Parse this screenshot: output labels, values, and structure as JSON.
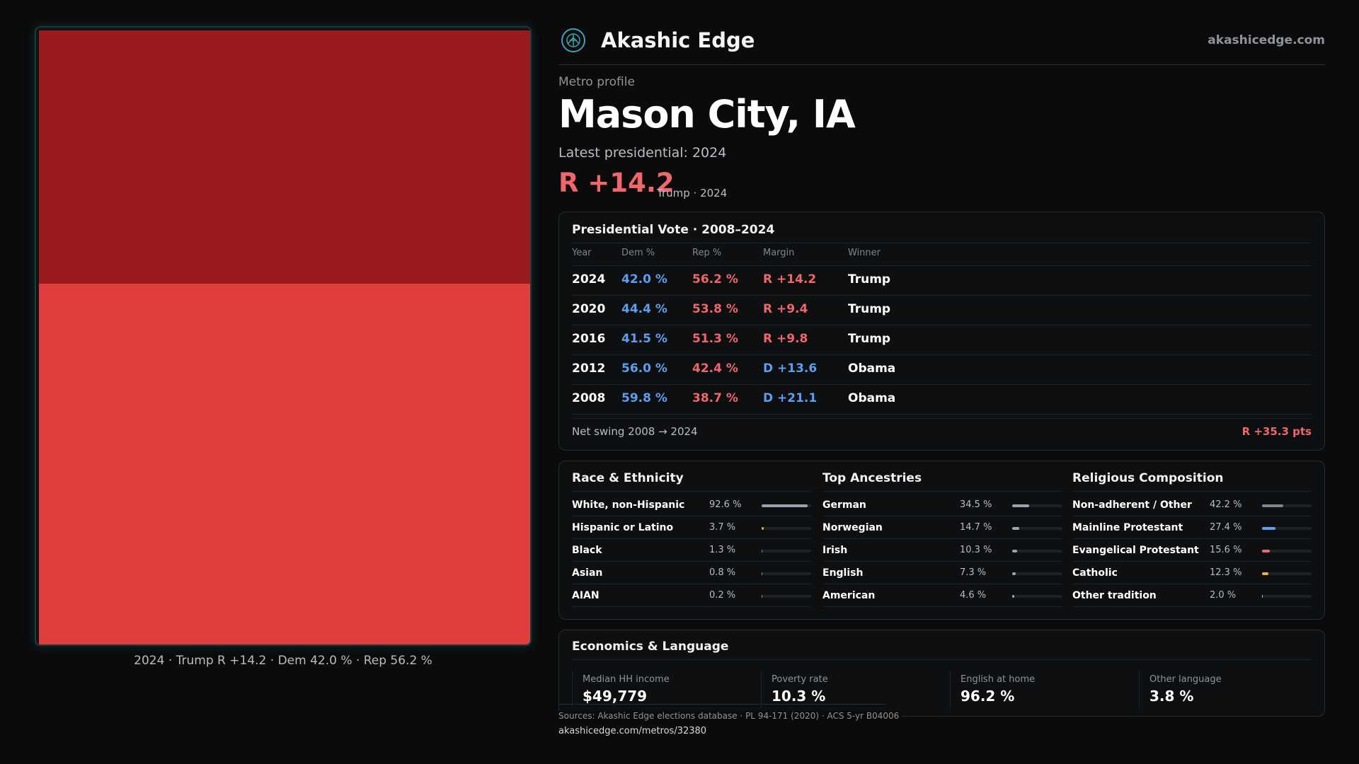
{
  "brand": {
    "name": "Akashic Edge",
    "url": "akashicedge.com",
    "logo_icon": "compass-figure-icon"
  },
  "profile": {
    "kicker": "Metro profile",
    "city": "Mason City, IA",
    "latest_label": "Latest presidential: 2024",
    "margin": "R +14.2",
    "margin_sub": "Trump · 2024"
  },
  "map": {
    "caption": "2024 · Trump R +14.2 · Dem 42.0 % · Rep 56.2 %",
    "colors": {
      "upper": "#9a1b1e",
      "lower": "#e03d3e"
    }
  },
  "vote_table": {
    "title": "Presidential Vote · 2008–2024",
    "headers": {
      "year": "Year",
      "dem": "Dem %",
      "rep": "Rep %",
      "margin": "Margin",
      "winner": "Winner"
    },
    "rows": [
      {
        "year": "2024",
        "dem": "42.0 %",
        "rep": "56.2 %",
        "margin": "R +14.2",
        "party": "R",
        "winner": "Trump"
      },
      {
        "year": "2020",
        "dem": "44.4 %",
        "rep": "53.8 %",
        "margin": "R +9.4",
        "party": "R",
        "winner": "Trump"
      },
      {
        "year": "2016",
        "dem": "41.5 %",
        "rep": "51.3 %",
        "margin": "R +9.8",
        "party": "R",
        "winner": "Trump"
      },
      {
        "year": "2012",
        "dem": "56.0 %",
        "rep": "42.4 %",
        "margin": "D +13.6",
        "party": "D",
        "winner": "Obama"
      },
      {
        "year": "2008",
        "dem": "59.8 %",
        "rep": "38.7 %",
        "margin": "D +21.1",
        "party": "D",
        "winner": "Obama"
      }
    ],
    "swing_label": "Net swing 2008 → 2024",
    "swing_value": "R +35.3 pts"
  },
  "demographics": [
    {
      "title": "Race & Ethnicity",
      "rows": [
        {
          "label": "White, non-Hispanic",
          "value": "92.6 %",
          "pct": 92.6,
          "color": "#9aa3b0"
        },
        {
          "label": "Hispanic or Latino",
          "value": "3.7 %",
          "pct": 3.7,
          "color": "#e0a040"
        },
        {
          "label": "Black",
          "value": "1.3 %",
          "pct": 1.3,
          "color": "#8a7ae0"
        },
        {
          "label": "Asian",
          "value": "0.8 %",
          "pct": 0.8,
          "color": "#4fb0b0"
        },
        {
          "label": "AIAN",
          "value": "0.2 %",
          "pct": 0.2,
          "color": "#c08060"
        }
      ]
    },
    {
      "title": "Top Ancestries",
      "rows": [
        {
          "label": "German",
          "value": "34.5 %",
          "pct": 34.5,
          "color": "#9aa3b0"
        },
        {
          "label": "Norwegian",
          "value": "14.7 %",
          "pct": 14.7,
          "color": "#9aa3b0"
        },
        {
          "label": "Irish",
          "value": "10.3 %",
          "pct": 10.3,
          "color": "#9aa3b0"
        },
        {
          "label": "English",
          "value": "7.3 %",
          "pct": 7.3,
          "color": "#9aa3b0"
        },
        {
          "label": "American",
          "value": "4.6 %",
          "pct": 4.6,
          "color": "#9aa3b0"
        }
      ]
    },
    {
      "title": "Religious Composition",
      "rows": [
        {
          "label": "Non-adherent / Other",
          "value": "42.2 %",
          "pct": 42.2,
          "color": "#7d8794"
        },
        {
          "label": "Mainline Protestant",
          "value": "27.4 %",
          "pct": 27.4,
          "color": "#5e9ef0"
        },
        {
          "label": "Evangelical Protestant",
          "value": "15.6 %",
          "pct": 15.6,
          "color": "#f0666a"
        },
        {
          "label": "Catholic",
          "value": "12.3 %",
          "pct": 12.3,
          "color": "#e8b23a"
        },
        {
          "label": "Other tradition",
          "value": "2.0 %",
          "pct": 2.0,
          "color": "#b9bcc2"
        }
      ]
    }
  ],
  "economics": {
    "title": "Economics & Language",
    "stats": [
      {
        "label": "Median HH income",
        "value": "$49,779"
      },
      {
        "label": "Poverty rate",
        "value": "10.3 %"
      },
      {
        "label": "English at home",
        "value": "96.2 %"
      },
      {
        "label": "Other language",
        "value": "3.8 %"
      }
    ]
  },
  "footer": {
    "sources": "Sources: Akashic Edge elections database · PL 94-171 (2020) · ACS 5-yr B04006",
    "url": "akashicedge.com/metros/32380"
  }
}
